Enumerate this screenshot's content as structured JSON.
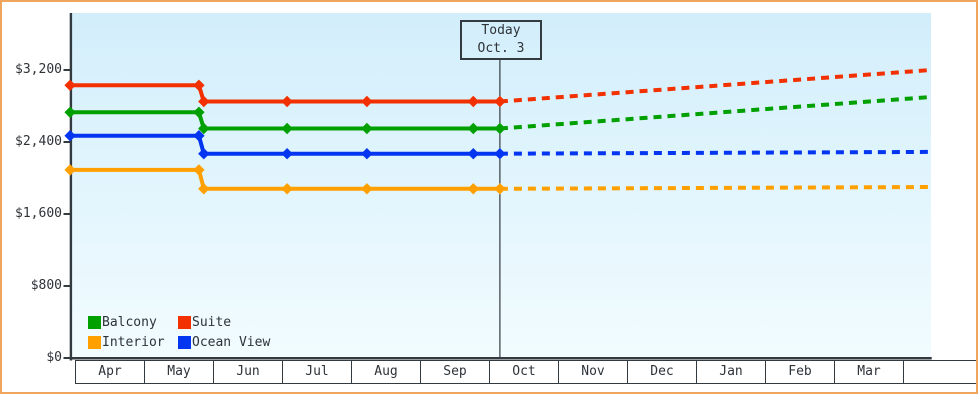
{
  "window": {
    "frame_color": "#efa55b",
    "background": "#ffffff"
  },
  "chart_data": {
    "type": "line",
    "title": "",
    "description": "Cruise cabin price history by category with dashed price projection after today",
    "y_axis": {
      "tick_labels": [
        "$3,200",
        "$2,400",
        "$1,600",
        "$800",
        "$0"
      ],
      "tick_values": [
        3200,
        2400,
        1600,
        800,
        0
      ],
      "range": [
        0,
        3840
      ],
      "grid": false
    },
    "x_axis": {
      "unit": "months since Apr 1",
      "labels": [
        "Apr",
        "May",
        "Jun",
        "Jul",
        "Aug",
        "Sep",
        "Oct",
        "Nov",
        "Dec",
        "Jan",
        "Feb",
        "Mar"
      ]
    },
    "today_marker": {
      "line1": "Today",
      "line2": "Oct. 3",
      "month_offset": 6.07
    },
    "plot_background": {
      "top": "#d2eefb",
      "bottom": "#f2fcff"
    },
    "axis_color": "#333a40",
    "series": [
      {
        "name": "Suite",
        "color": "#f23000",
        "points": [
          {
            "m": -0.07,
            "value": 3030
          },
          {
            "m": 1.77,
            "value": 3030
          },
          {
            "m": 1.84,
            "value": 2850
          },
          {
            "m": 3.03,
            "value": 2850
          },
          {
            "m": 4.17,
            "value": 2850
          },
          {
            "m": 5.69,
            "value": 2850
          },
          {
            "m": 6.07,
            "value": 2850
          }
        ],
        "projected": [
          {
            "m": 6.07,
            "value": 2850
          },
          {
            "m": 12.23,
            "value": 3200
          }
        ]
      },
      {
        "name": "Balcony",
        "color": "#00a000",
        "points": [
          {
            "m": -0.07,
            "value": 2730
          },
          {
            "m": 1.77,
            "value": 2730
          },
          {
            "m": 1.84,
            "value": 2550
          },
          {
            "m": 3.03,
            "value": 2550
          },
          {
            "m": 4.17,
            "value": 2550
          },
          {
            "m": 5.69,
            "value": 2550
          },
          {
            "m": 6.07,
            "value": 2550
          }
        ],
        "projected": [
          {
            "m": 6.07,
            "value": 2550
          },
          {
            "m": 12.23,
            "value": 2900
          }
        ]
      },
      {
        "name": "Ocean View",
        "color": "#0435f0",
        "points": [
          {
            "m": -0.07,
            "value": 2470
          },
          {
            "m": 1.77,
            "value": 2470
          },
          {
            "m": 1.84,
            "value": 2270
          },
          {
            "m": 3.03,
            "value": 2270
          },
          {
            "m": 4.17,
            "value": 2270
          },
          {
            "m": 5.69,
            "value": 2270
          },
          {
            "m": 6.07,
            "value": 2270
          }
        ],
        "projected": [
          {
            "m": 6.07,
            "value": 2270
          },
          {
            "m": 12.23,
            "value": 2290
          }
        ]
      },
      {
        "name": "Interior",
        "color": "#ffa000",
        "points": [
          {
            "m": -0.07,
            "value": 2090
          },
          {
            "m": 1.77,
            "value": 2090
          },
          {
            "m": 1.84,
            "value": 1880
          },
          {
            "m": 3.03,
            "value": 1880
          },
          {
            "m": 4.17,
            "value": 1880
          },
          {
            "m": 5.69,
            "value": 1880
          },
          {
            "m": 6.07,
            "value": 1880
          }
        ],
        "projected": [
          {
            "m": 6.07,
            "value": 1880
          },
          {
            "m": 12.23,
            "value": 1900
          }
        ]
      }
    ],
    "legend": [
      {
        "label": "Balcony",
        "color": "#00a000"
      },
      {
        "label": "Suite",
        "color": "#f23000"
      },
      {
        "label": "Interior",
        "color": "#ffa000"
      },
      {
        "label": "Ocean View",
        "color": "#0435f0"
      }
    ]
  }
}
